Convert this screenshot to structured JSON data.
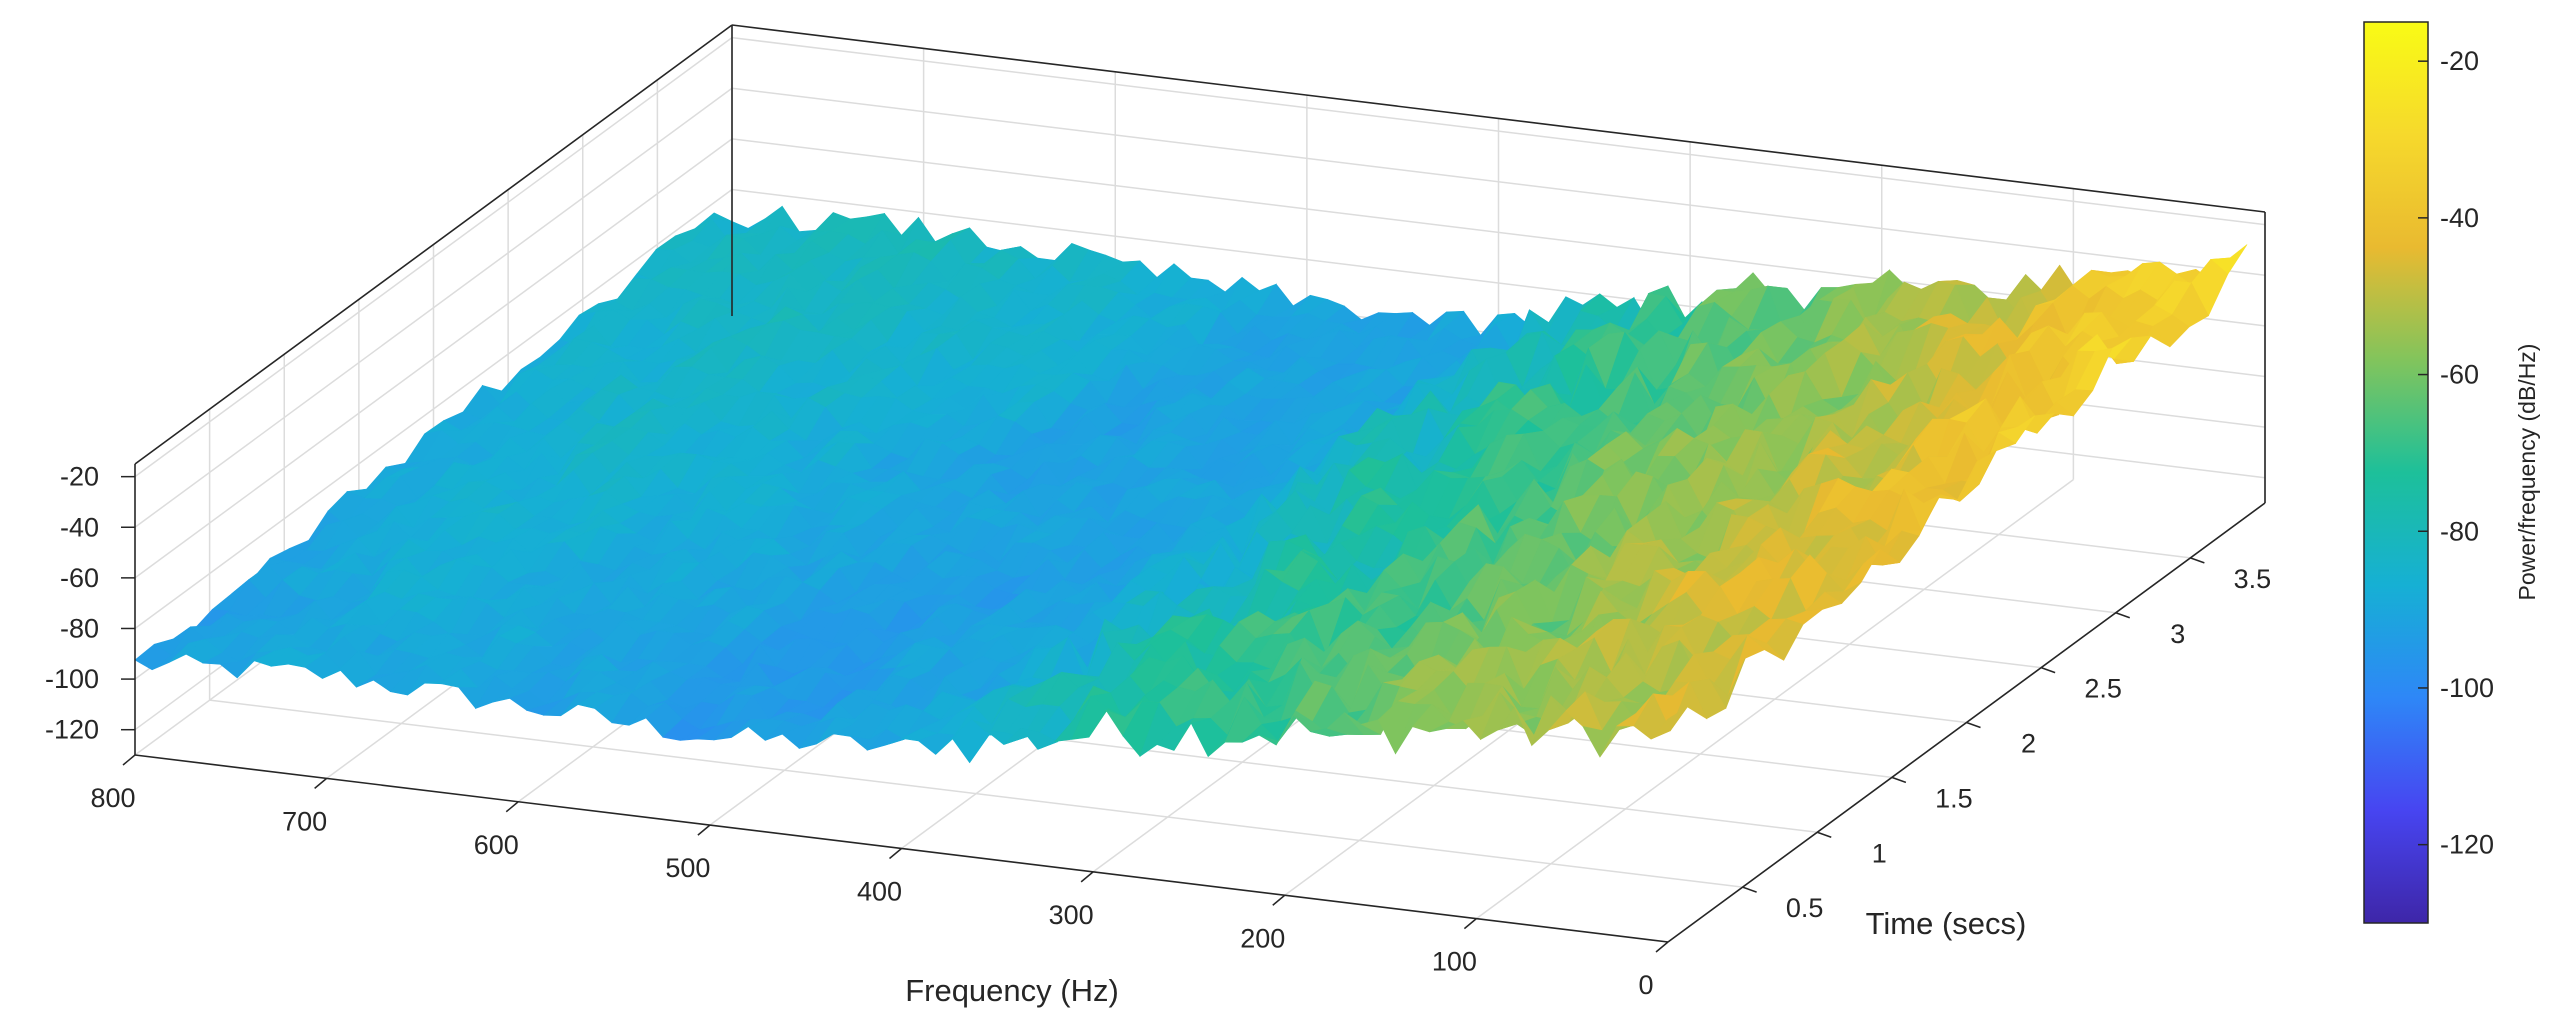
{
  "chart_data": {
    "type": "surface",
    "title": "",
    "xlabel": "Frequency (Hz)",
    "ylabel": "Time (secs)",
    "zlabel": "",
    "xlim": [
      0,
      800
    ],
    "ylim": [
      0,
      4
    ],
    "zlim": [
      -130,
      -15
    ],
    "x_ticks": [
      "800",
      "700",
      "600",
      "500",
      "400",
      "300",
      "200",
      "100",
      "0"
    ],
    "y_ticks": [
      "0.5",
      "1",
      "1.5",
      "2",
      "2.5",
      "3",
      "3.5"
    ],
    "z_ticks": [
      "-20",
      "-40",
      "-60",
      "-80",
      "-100",
      "-120"
    ],
    "grid": true,
    "colormap": "parula",
    "colormap_stops": [
      "#3e26a8",
      "#4745f1",
      "#2e87f7",
      "#16b0d4",
      "#1dc09a",
      "#82c45c",
      "#e9ba30",
      "#f6d92c",
      "#f9fb15"
    ],
    "colorbar": {
      "label": "Power/frequency (dB/Hz)",
      "limits": [
        -130,
        -15
      ],
      "ticks": [
        "-20",
        "-40",
        "-60",
        "-80",
        "-100",
        "-120"
      ]
    },
    "surface_trend": {
      "frequency_hz": [
        800,
        700,
        600,
        500,
        400,
        300,
        200,
        100,
        0
      ],
      "power_db_per_hz_at_t0": [
        -94,
        -89,
        -92,
        -95,
        -90,
        -75,
        -65,
        -55,
        -48
      ],
      "power_db_per_hz_at_t3_8": [
        -84,
        -80,
        -84,
        -90,
        -92,
        -72,
        -60,
        -48,
        -28
      ]
    }
  }
}
